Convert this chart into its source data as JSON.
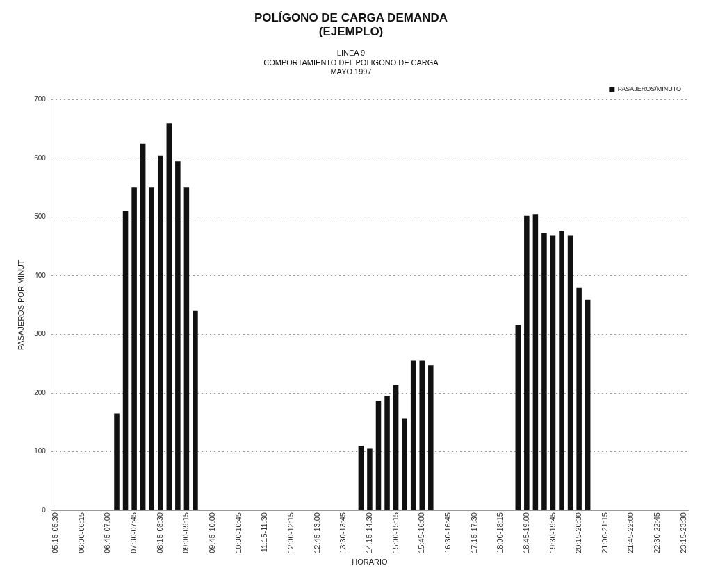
{
  "chart_data": {
    "type": "bar",
    "title": "POLÍGONO DE CARGA DEMANDA\n(EJEMPLO)",
    "subtitle": "LINEA 9\nCOMPORTAMIENTO DEL POLIGONO DE CARGA\nMAYO 1997",
    "xlabel": "HORARIO",
    "ylabel": "PASAJEROS POR MINUT",
    "categories": [
      "05:15-05:30",
      null,
      null,
      "06:00-06:15",
      null,
      null,
      "06:45-07:00",
      null,
      null,
      "07:30-07:45",
      null,
      null,
      "08:15-08:30",
      null,
      null,
      "09:00-09:15",
      null,
      null,
      "09:45-10:00",
      null,
      null,
      "10:30-10:45",
      null,
      null,
      "11:15-11:30",
      null,
      null,
      "12:00-12:15",
      null,
      null,
      "12:45-13:00",
      null,
      null,
      "13:30-13:45",
      null,
      null,
      "14:15-14:30",
      null,
      null,
      "15:00-15:15",
      null,
      null,
      "15:45-16:00",
      null,
      null,
      "16:30-16:45",
      null,
      null,
      "17:15-17:30",
      null,
      null,
      "18:00-18:15",
      null,
      null,
      "18:45-19:00",
      null,
      null,
      "19:30-19:45",
      null,
      null,
      "20:15-20:30",
      null,
      null,
      "21:00-21:15",
      null,
      null,
      "21:45-22:00",
      null,
      null,
      "22:30-22:45",
      null,
      null,
      "23:15-23:30"
    ],
    "series": [
      {
        "name": "PASAJEROS/MINUTO",
        "color": "#111111",
        "values": [
          0,
          0,
          0,
          0,
          0,
          0,
          0,
          165,
          510,
          550,
          625,
          550,
          605,
          660,
          595,
          550,
          340,
          0,
          0,
          0,
          0,
          0,
          0,
          0,
          0,
          0,
          0,
          0,
          0,
          0,
          0,
          0,
          0,
          0,
          0,
          110,
          106,
          187,
          195,
          213,
          157,
          255,
          255,
          247,
          0,
          0,
          0,
          0,
          0,
          0,
          0,
          0,
          0,
          316,
          502,
          505,
          472,
          468,
          477,
          468,
          379,
          359,
          0,
          0,
          0,
          0,
          0,
          0,
          0,
          0,
          0,
          0,
          0
        ]
      }
    ],
    "ylim": [
      0,
      700
    ],
    "yticks": [
      0,
      100,
      200,
      300,
      400,
      500,
      600,
      700
    ],
    "grid": "y",
    "legend": "top right"
  }
}
